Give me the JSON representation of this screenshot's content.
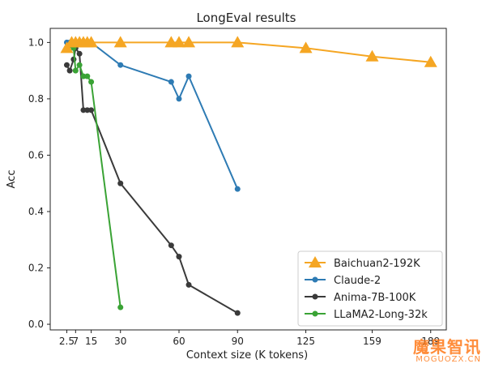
{
  "chart_data": {
    "type": "line",
    "title": "LongEval results",
    "xlabel": "Context size (K tokens)",
    "ylabel": "Acc",
    "xticks": [
      2.5,
      7,
      15,
      30,
      60,
      90,
      125,
      159,
      189
    ],
    "xtick_labels": [
      "2.5",
      "7",
      "15",
      "30",
      "60",
      "90",
      "125",
      "159",
      "189"
    ],
    "yticks": [
      0.0,
      0.2,
      0.4,
      0.6,
      0.8,
      1.0
    ],
    "ytick_labels": [
      "0.0",
      "0.2",
      "0.4",
      "0.6",
      "0.8",
      "1.0"
    ],
    "xlim": [
      -6,
      197
    ],
    "ylim": [
      -0.02,
      1.05
    ],
    "grid": false,
    "legend_position": "lower-right",
    "series": [
      {
        "name": "Baichuan2-192K",
        "color": "#f5a623",
        "marker": "triangle",
        "x": [
          2.5,
          5,
          7,
          9,
          11,
          13,
          15,
          30,
          56,
          60,
          65,
          90,
          125,
          159,
          189
        ],
        "y": [
          0.98,
          1.0,
          1.0,
          1.0,
          1.0,
          1.0,
          1.0,
          1.0,
          1.0,
          1.0,
          1.0,
          1.0,
          0.98,
          0.95,
          0.93
        ]
      },
      {
        "name": "Claude-2",
        "color": "#2e7bb4",
        "marker": "circle",
        "x": [
          2.5,
          4,
          6,
          7,
          9,
          11,
          13,
          15,
          30,
          56,
          60,
          65,
          90
        ],
        "y": [
          1.0,
          1.0,
          1.0,
          1.0,
          1.0,
          1.0,
          1.0,
          1.0,
          0.92,
          0.86,
          0.8,
          0.88,
          0.48
        ]
      },
      {
        "name": "Anima-7B-100K",
        "color": "#3a3a3a",
        "marker": "circle",
        "x": [
          2.5,
          4,
          6,
          7,
          9,
          11,
          13,
          15,
          30,
          56,
          60,
          65,
          90
        ],
        "y": [
          0.92,
          0.9,
          0.94,
          0.98,
          0.96,
          0.76,
          0.76,
          0.76,
          0.5,
          0.28,
          0.24,
          0.14,
          0.04
        ]
      },
      {
        "name": "LLaMA2-Long-32k",
        "color": "#3aa335",
        "marker": "circle",
        "x": [
          2.5,
          4,
          6,
          7,
          9,
          11,
          13,
          15,
          30
        ],
        "y": [
          0.98,
          0.99,
          0.98,
          0.9,
          0.92,
          0.88,
          0.88,
          0.86,
          0.06
        ]
      }
    ]
  },
  "watermark": {
    "main": "魔果智讯",
    "sub": "MOGUOZX.CN"
  }
}
